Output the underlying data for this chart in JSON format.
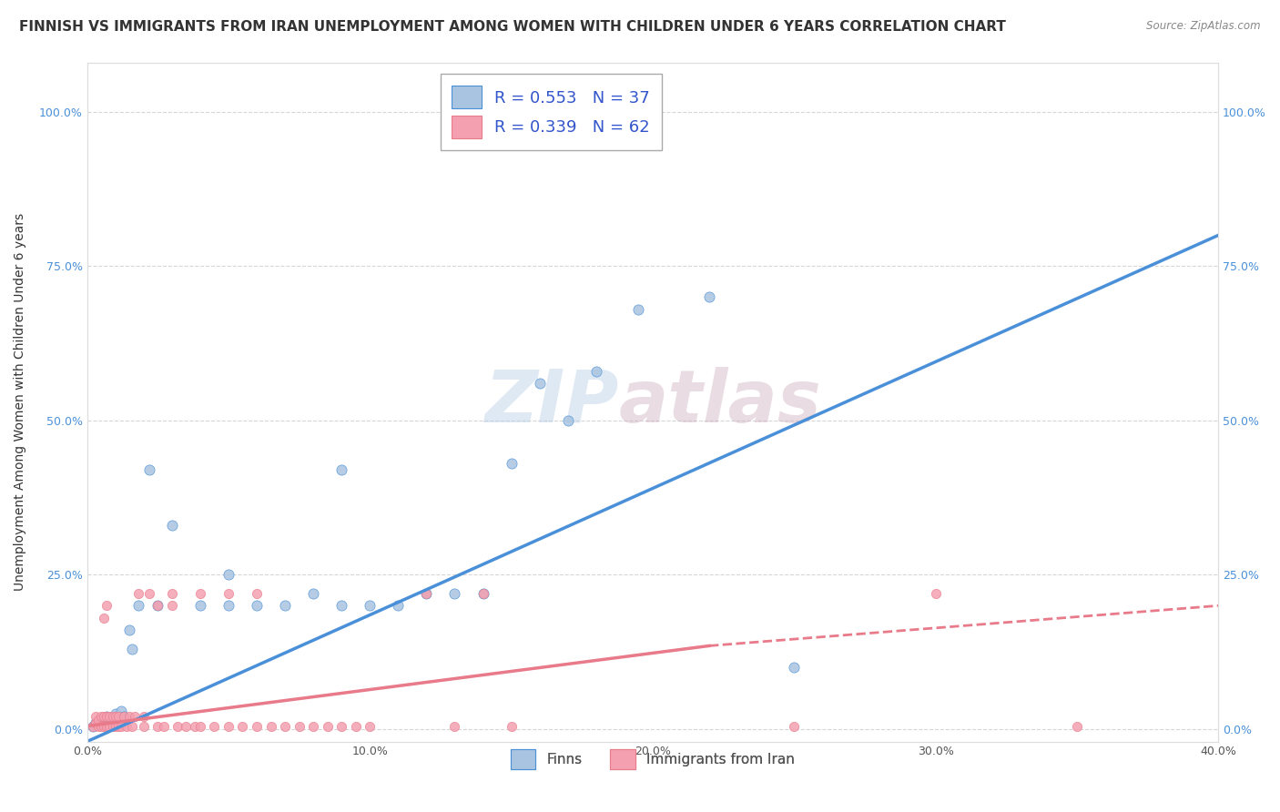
{
  "title": "FINNISH VS IMMIGRANTS FROM IRAN UNEMPLOYMENT AMONG WOMEN WITH CHILDREN UNDER 6 YEARS CORRELATION CHART",
  "source": "Source: ZipAtlas.com",
  "ylabel": "Unemployment Among Women with Children Under 6 years",
  "xlim": [
    0.0,
    0.4
  ],
  "ylim": [
    -0.02,
    1.08
  ],
  "x_tick_vals": [
    0.0,
    0.1,
    0.2,
    0.3,
    0.4
  ],
  "x_tick_labels": [
    "0.0%",
    "10.0%",
    "20.0%",
    "30.0%",
    "40.0%"
  ],
  "y_tick_vals": [
    0.0,
    0.25,
    0.5,
    0.75,
    1.0
  ],
  "y_tick_labels": [
    "0.0%",
    "25.0%",
    "50.0%",
    "75.0%",
    "100.0%"
  ],
  "legend_entries": [
    {
      "label": "Finns",
      "R": "0.553",
      "N": "37",
      "scatter_color": "#a8c4e0",
      "line_color": "#4a90d9"
    },
    {
      "label": "Immigrants from Iran",
      "R": "0.339",
      "N": "62",
      "scatter_color": "#f4a0b0",
      "line_color": "#e87a8a"
    }
  ],
  "finns_scatter": [
    [
      0.002,
      0.005
    ],
    [
      0.003,
      0.01
    ],
    [
      0.004,
      0.008
    ],
    [
      0.005,
      0.015
    ],
    [
      0.006,
      0.01
    ],
    [
      0.007,
      0.02
    ],
    [
      0.008,
      0.015
    ],
    [
      0.009,
      0.018
    ],
    [
      0.01,
      0.025
    ],
    [
      0.012,
      0.03
    ],
    [
      0.013,
      0.02
    ],
    [
      0.015,
      0.16
    ],
    [
      0.016,
      0.13
    ],
    [
      0.018,
      0.2
    ],
    [
      0.022,
      0.42
    ],
    [
      0.025,
      0.2
    ],
    [
      0.03,
      0.33
    ],
    [
      0.04,
      0.2
    ],
    [
      0.05,
      0.2
    ],
    [
      0.06,
      0.2
    ],
    [
      0.07,
      0.2
    ],
    [
      0.08,
      0.22
    ],
    [
      0.09,
      0.2
    ],
    [
      0.1,
      0.2
    ],
    [
      0.11,
      0.2
    ],
    [
      0.12,
      0.22
    ],
    [
      0.13,
      0.22
    ],
    [
      0.14,
      0.22
    ],
    [
      0.15,
      0.43
    ],
    [
      0.16,
      0.56
    ],
    [
      0.17,
      0.5
    ],
    [
      0.18,
      0.58
    ],
    [
      0.195,
      0.68
    ],
    [
      0.22,
      0.7
    ],
    [
      0.25,
      0.1
    ],
    [
      0.05,
      0.25
    ],
    [
      0.09,
      0.42
    ]
  ],
  "iran_scatter": [
    [
      0.002,
      0.005
    ],
    [
      0.003,
      0.01
    ],
    [
      0.003,
      0.02
    ],
    [
      0.004,
      0.005
    ],
    [
      0.004,
      0.015
    ],
    [
      0.005,
      0.005
    ],
    [
      0.005,
      0.02
    ],
    [
      0.006,
      0.005
    ],
    [
      0.006,
      0.02
    ],
    [
      0.006,
      0.18
    ],
    [
      0.007,
      0.005
    ],
    [
      0.007,
      0.02
    ],
    [
      0.007,
      0.2
    ],
    [
      0.008,
      0.005
    ],
    [
      0.008,
      0.02
    ],
    [
      0.009,
      0.005
    ],
    [
      0.009,
      0.02
    ],
    [
      0.01,
      0.005
    ],
    [
      0.01,
      0.02
    ],
    [
      0.011,
      0.005
    ],
    [
      0.011,
      0.02
    ],
    [
      0.012,
      0.005
    ],
    [
      0.013,
      0.02
    ],
    [
      0.014,
      0.005
    ],
    [
      0.015,
      0.02
    ],
    [
      0.016,
      0.005
    ],
    [
      0.017,
      0.02
    ],
    [
      0.018,
      0.22
    ],
    [
      0.02,
      0.005
    ],
    [
      0.02,
      0.02
    ],
    [
      0.022,
      0.22
    ],
    [
      0.025,
      0.005
    ],
    [
      0.025,
      0.2
    ],
    [
      0.027,
      0.005
    ],
    [
      0.03,
      0.2
    ],
    [
      0.03,
      0.22
    ],
    [
      0.032,
      0.005
    ],
    [
      0.035,
      0.005
    ],
    [
      0.038,
      0.005
    ],
    [
      0.04,
      0.22
    ],
    [
      0.04,
      0.005
    ],
    [
      0.045,
      0.005
    ],
    [
      0.05,
      0.22
    ],
    [
      0.05,
      0.005
    ],
    [
      0.055,
      0.005
    ],
    [
      0.06,
      0.22
    ],
    [
      0.06,
      0.005
    ],
    [
      0.065,
      0.005
    ],
    [
      0.07,
      0.005
    ],
    [
      0.075,
      0.005
    ],
    [
      0.08,
      0.005
    ],
    [
      0.085,
      0.005
    ],
    [
      0.09,
      0.005
    ],
    [
      0.095,
      0.005
    ],
    [
      0.1,
      0.005
    ],
    [
      0.12,
      0.22
    ],
    [
      0.13,
      0.005
    ],
    [
      0.14,
      0.22
    ],
    [
      0.15,
      0.005
    ],
    [
      0.25,
      0.005
    ],
    [
      0.3,
      0.22
    ],
    [
      0.35,
      0.005
    ]
  ],
  "finns_line": {
    "x0": 0.0,
    "y0": -0.02,
    "x1": 0.4,
    "y1": 0.8
  },
  "iran_line_solid": {
    "x0": 0.0,
    "y0": 0.005,
    "x1": 0.22,
    "y1": 0.135
  },
  "iran_line_dashed": {
    "x0": 0.22,
    "y0": 0.135,
    "x1": 0.4,
    "y1": 0.2
  },
  "watermark_zip": "ZIP",
  "watermark_atlas": "atlas",
  "background_color": "#ffffff",
  "grid_color": "#cccccc",
  "title_fontsize": 11,
  "axis_label_fontsize": 10,
  "tick_fontsize": 9,
  "tick_color_y": "#4a90d9",
  "tick_color_x": "#555555"
}
